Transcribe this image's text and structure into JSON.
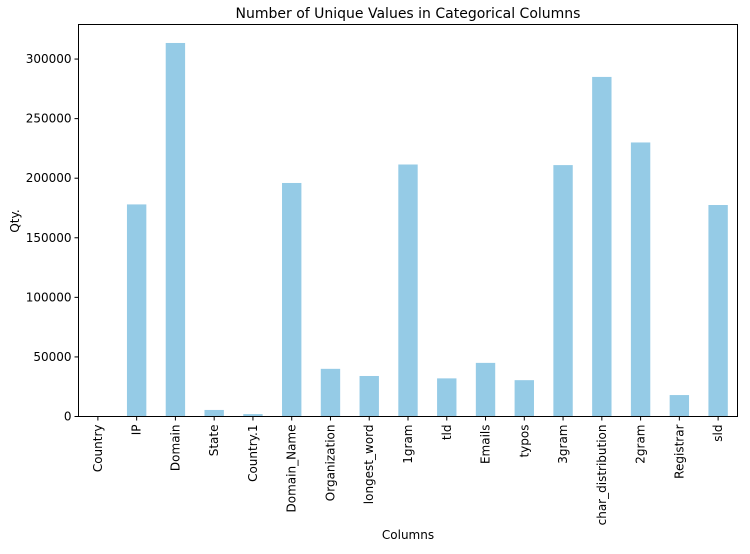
{
  "chart_data": {
    "type": "bar",
    "title": "Number of Unique Values in Categorical Columns",
    "xlabel": "Columns",
    "ylabel": "Qty.",
    "categories": [
      "Country",
      "IP",
      "Domain",
      "State",
      "Country.1",
      "Domain_Name",
      "Organization",
      "longest_word",
      "1gram",
      "tld",
      "Emails",
      "typos",
      "3gram",
      "char_distribution",
      "2gram",
      "Registrar",
      "sld"
    ],
    "values": [
      200,
      178000,
      313500,
      5500,
      2000,
      196000,
      40000,
      34000,
      211500,
      32000,
      45000,
      30500,
      211000,
      285000,
      230000,
      18000,
      177500
    ],
    "ylim": [
      0,
      329000
    ],
    "yticks": [
      0,
      50000,
      100000,
      150000,
      200000,
      250000,
      300000
    ],
    "bar_color": "#95cbe6",
    "grid": false,
    "legend": "none"
  }
}
